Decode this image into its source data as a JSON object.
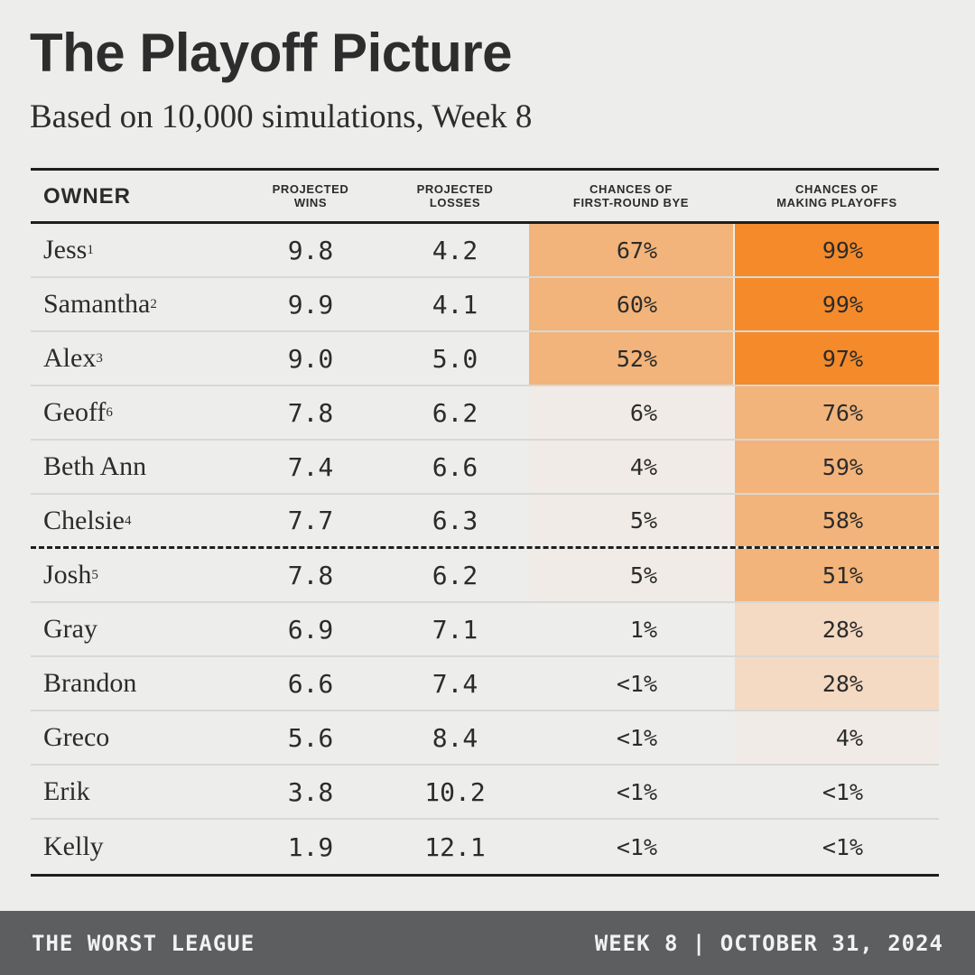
{
  "title": "The Playoff Picture",
  "subtitle": "Based on 10,000 simulations, Week 8",
  "headers": {
    "owner": "OWNER",
    "wins_1": "PROJECTED",
    "wins_2": "WINS",
    "losses_1": "PROJECTED",
    "losses_2": "LOSSES",
    "bye_1": "CHANCES OF",
    "bye_2": "FIRST-ROUND BYE",
    "playoffs_1": "CHANCES OF",
    "playoffs_2": "MAKING PLAYOFFS"
  },
  "colors": {
    "heat_high": "#f58a2a",
    "heat_mid": "#f2b47a",
    "heat_light": "#f4d9c3",
    "heat_faint": "#f0ebe6"
  },
  "rows": [
    {
      "owner": "Jess",
      "seed": "1",
      "wins": "9.8",
      "losses": "4.2",
      "bye": "67%",
      "playoffs": "99%",
      "bye_value": 67,
      "playoffs_value": 99
    },
    {
      "owner": "Samantha",
      "seed": "2",
      "wins": "9.9",
      "losses": "4.1",
      "bye": "60%",
      "playoffs": "99%",
      "bye_value": 60,
      "playoffs_value": 99
    },
    {
      "owner": "Alex",
      "seed": "3",
      "wins": "9.0",
      "losses": "5.0",
      "bye": "52%",
      "playoffs": "97%",
      "bye_value": 52,
      "playoffs_value": 97
    },
    {
      "owner": "Geoff",
      "seed": "6",
      "wins": "7.8",
      "losses": "6.2",
      "bye": "6%",
      "playoffs": "76%",
      "bye_value": 6,
      "playoffs_value": 76
    },
    {
      "owner": "Beth Ann",
      "seed": "",
      "wins": "7.4",
      "losses": "6.6",
      "bye": "4%",
      "playoffs": "59%",
      "bye_value": 4,
      "playoffs_value": 59
    },
    {
      "owner": "Chelsie",
      "seed": "4",
      "wins": "7.7",
      "losses": "6.3",
      "bye": "5%",
      "playoffs": "58%",
      "bye_value": 5,
      "playoffs_value": 58
    },
    {
      "owner": "Josh",
      "seed": "5",
      "wins": "7.8",
      "losses": "6.2",
      "bye": "5%",
      "playoffs": "51%",
      "bye_value": 5,
      "playoffs_value": 51
    },
    {
      "owner": "Gray",
      "seed": "",
      "wins": "6.9",
      "losses": "7.1",
      "bye": "1%",
      "playoffs": "28%",
      "bye_value": 1,
      "playoffs_value": 28
    },
    {
      "owner": "Brandon",
      "seed": "",
      "wins": "6.6",
      "losses": "7.4",
      "bye": "<1%",
      "playoffs": "28%",
      "bye_value": 0,
      "playoffs_value": 28
    },
    {
      "owner": "Greco",
      "seed": "",
      "wins": "5.6",
      "losses": "8.4",
      "bye": "<1%",
      "playoffs": "4%",
      "bye_value": 0,
      "playoffs_value": 4
    },
    {
      "owner": "Erik",
      "seed": "",
      "wins": "3.8",
      "losses": "10.2",
      "bye": "<1%",
      "playoffs": "<1%",
      "bye_value": 0,
      "playoffs_value": 0
    },
    {
      "owner": "Kelly",
      "seed": "",
      "wins": "1.9",
      "losses": "12.1",
      "bye": "<1%",
      "playoffs": "<1%",
      "bye_value": 0,
      "playoffs_value": 0
    }
  ],
  "cutoff_after_row": 6,
  "footer": {
    "league": "THE WORST LEAGUE",
    "date": "WEEK 8 | OCTOBER 31, 2024"
  }
}
